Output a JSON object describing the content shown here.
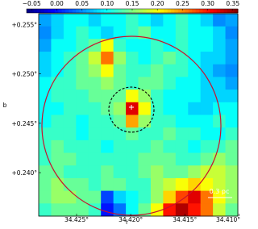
{
  "chart_data": {
    "type": "heatmap",
    "colormap": "jet",
    "clim": [
      -0.06,
      0.36
    ],
    "cticks": [
      {
        "value": -0.05,
        "label": "−0.05"
      },
      {
        "value": 0,
        "label": "0.00"
      },
      {
        "value": 0.05,
        "label": "0.05"
      },
      {
        "value": 0.1,
        "label": "0.10"
      },
      {
        "value": 0.15,
        "label": "0.15"
      },
      {
        "value": 0.2,
        "label": "0.20"
      },
      {
        "value": 0.25,
        "label": "0.25"
      },
      {
        "value": 0.3,
        "label": "0.30"
      },
      {
        "value": 0.35,
        "label": "0.35"
      }
    ],
    "xlabel": "l",
    "ylabel": "b",
    "xlim": [
      34.4285,
      34.4101
    ],
    "ylim": [
      0.2356,
      0.2561
    ],
    "xticks": [
      {
        "value": 34.425,
        "label": "34.425°"
      },
      {
        "value": 34.42,
        "label": "34.420°"
      },
      {
        "value": 34.415,
        "label": "34.415°"
      },
      {
        "value": 34.41,
        "label": "34.410°"
      }
    ],
    "yticks": [
      {
        "value": 0.24,
        "label": "+0.240°"
      },
      {
        "value": 0.245,
        "label": "+0.245°"
      },
      {
        "value": 0.25,
        "label": "+0.250°"
      },
      {
        "value": 0.255,
        "label": "+0.255°"
      }
    ],
    "annotations": [
      "0.3 pc"
    ],
    "z": [
      [
        0.06,
        0.08,
        0.1,
        0.1,
        0.08,
        0.1,
        0.1,
        0.12,
        0.1,
        0.08,
        0.1,
        0.12,
        0.1,
        0.08,
        0.05,
        0.06
      ],
      [
        0.05,
        0.08,
        0.1,
        0.12,
        0.1,
        0.08,
        0.1,
        0.12,
        0.14,
        0.1,
        0.1,
        0.12,
        0.1,
        0.1,
        0.08,
        0.05
      ],
      [
        0.06,
        0.1,
        0.1,
        0.12,
        0.14,
        0.2,
        0.12,
        0.1,
        0.1,
        0.12,
        0.1,
        0.12,
        0.1,
        0.1,
        0.08,
        0.06
      ],
      [
        0.08,
        0.1,
        0.12,
        0.14,
        0.18,
        0.26,
        0.16,
        0.12,
        0.1,
        0.12,
        0.14,
        0.12,
        0.1,
        0.08,
        0.08,
        0.06
      ],
      [
        0.08,
        0.1,
        0.12,
        0.14,
        0.16,
        0.2,
        0.14,
        0.12,
        0.12,
        0.14,
        0.12,
        0.12,
        0.1,
        0.08,
        0.06,
        0.05
      ],
      [
        0.1,
        0.12,
        0.12,
        0.14,
        0.14,
        0.16,
        0.14,
        0.12,
        0.14,
        0.14,
        0.12,
        0.1,
        0.1,
        0.08,
        0.08,
        0.06
      ],
      [
        0.1,
        0.12,
        0.12,
        0.12,
        0.14,
        0.14,
        0.14,
        0.2,
        0.16,
        0.12,
        0.1,
        0.1,
        0.1,
        0.08,
        0.08,
        0.08
      ],
      [
        0.1,
        0.1,
        0.12,
        0.12,
        0.12,
        0.14,
        0.16,
        0.32,
        0.2,
        0.12,
        0.1,
        0.1,
        0.08,
        0.08,
        0.1,
        0.1
      ],
      [
        0.1,
        0.12,
        0.12,
        0.1,
        0.12,
        0.12,
        0.14,
        0.24,
        0.16,
        0.12,
        0.12,
        0.1,
        0.1,
        0.1,
        0.12,
        0.1
      ],
      [
        0.12,
        0.12,
        0.12,
        0.1,
        0.12,
        0.12,
        0.12,
        0.14,
        0.12,
        0.12,
        0.14,
        0.12,
        0.12,
        0.1,
        0.1,
        0.12
      ],
      [
        0.12,
        0.14,
        0.12,
        0.12,
        0.12,
        0.1,
        0.12,
        0.12,
        0.12,
        0.14,
        0.12,
        0.12,
        0.1,
        0.12,
        0.12,
        0.14
      ],
      [
        0.12,
        0.14,
        0.14,
        0.12,
        0.12,
        0.12,
        0.12,
        0.12,
        0.14,
        0.14,
        0.14,
        0.12,
        0.12,
        0.14,
        0.16,
        0.14
      ],
      [
        0.14,
        0.14,
        0.12,
        0.12,
        0.12,
        0.14,
        0.12,
        0.12,
        0.14,
        0.16,
        0.14,
        0.14,
        0.16,
        0.18,
        0.18,
        0.16
      ],
      [
        0.14,
        0.16,
        0.14,
        0.14,
        0.12,
        0.14,
        0.14,
        0.12,
        0.12,
        0.16,
        0.18,
        0.2,
        0.22,
        0.2,
        0.18,
        0.16
      ],
      [
        0.14,
        0.16,
        0.16,
        0.14,
        0.14,
        0.02,
        0.08,
        0.1,
        0.12,
        0.16,
        0.22,
        0.28,
        0.32,
        0.26,
        0.2,
        0.16
      ],
      [
        0.12,
        0.14,
        0.14,
        0.14,
        0.12,
        0.0,
        0.04,
        0.1,
        0.14,
        0.2,
        0.3,
        0.34,
        0.3,
        0.26,
        0.18,
        0.14
      ]
    ]
  }
}
